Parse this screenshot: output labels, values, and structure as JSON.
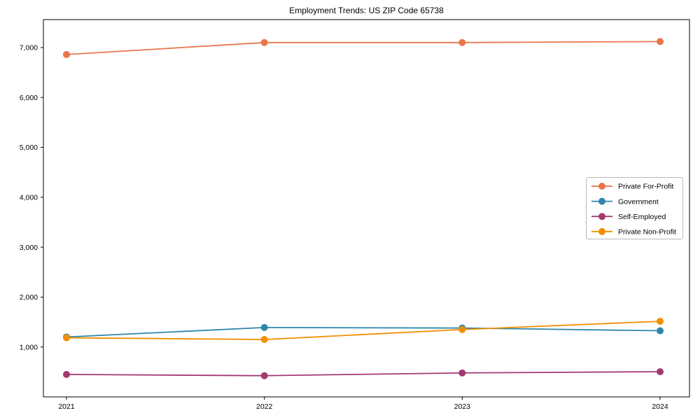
{
  "page": {
    "title": "Employment Trends: US ZIP Code 65738"
  },
  "chart_data": {
    "type": "line",
    "title": "Employment Trends: US ZIP Code 65738",
    "x": [
      "2021",
      "2022",
      "2023",
      "2024"
    ],
    "series": [
      {
        "name": "Private For-Profit",
        "color": "#E8764B",
        "values": [
          6860,
          7100,
          7100,
          7120
        ]
      },
      {
        "name": "Government",
        "color": "#2E86AB",
        "values": [
          1200,
          1390,
          1380,
          1325
        ]
      },
      {
        "name": "Self-Employed",
        "color": "#A23B72",
        "values": [
          450,
          425,
          480,
          505
        ]
      },
      {
        "name": "Private Non-Profit",
        "color": "#F18F01",
        "values": [
          1185,
          1150,
          1350,
          1515
        ]
      }
    ],
    "xlabel": "",
    "ylabel": "",
    "ylim": [
      0,
      7560
    ],
    "yticks": [
      1000,
      2000,
      3000,
      4000,
      5000,
      6000,
      7000
    ],
    "grid": false,
    "legend_position": "center right",
    "marker": "circle",
    "background_color": "#ffffff",
    "frame_color": "#000000",
    "legend_border_color": "#b8b8b8",
    "tick_label_color": "#000000"
  }
}
